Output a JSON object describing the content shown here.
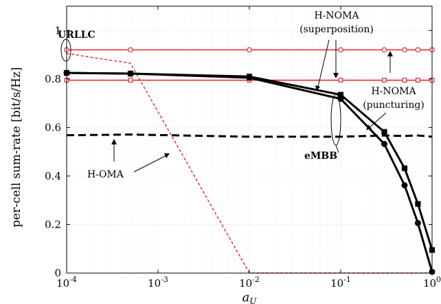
{
  "chart_data": {
    "type": "line",
    "xlabel": "a_U",
    "ylabel": "per-cell sum-rate [bit/s/Hz]",
    "xscale": "log",
    "xlim": [
      0.0001,
      1
    ],
    "ylim": [
      0,
      1.1
    ],
    "grid": true,
    "x_ticks": [
      {
        "value": 0.0001,
        "base": "10",
        "exp": "-4"
      },
      {
        "value": 0.001,
        "base": "10",
        "exp": "-3"
      },
      {
        "value": 0.01,
        "base": "10",
        "exp": "-2"
      },
      {
        "value": 0.1,
        "base": "10",
        "exp": "-1"
      },
      {
        "value": 1,
        "base": "10",
        "exp": "0"
      }
    ],
    "y_ticks": [
      {
        "value": 0,
        "label": "0"
      },
      {
        "value": 0.2,
        "label": "0.2"
      },
      {
        "value": 0.4,
        "label": "0.4"
      },
      {
        "value": 0.6,
        "label": "0.6"
      },
      {
        "value": 0.8,
        "label": "0.8"
      },
      {
        "value": 1,
        "label": "1"
      }
    ],
    "series": [
      {
        "key": "urllc_superposition",
        "color": "#e8202a",
        "width": 1.5,
        "dash": "",
        "marker": "circle-open",
        "markerSize": 3.2,
        "x": [
          0.0001,
          0.0005,
          0.01,
          0.1,
          0.3,
          0.5,
          0.7,
          1
        ],
        "y": [
          0.92,
          0.92,
          0.92,
          0.92,
          0.92,
          0.92,
          0.92,
          0.92
        ]
      },
      {
        "key": "urllc_puncturing",
        "color": "#e8202a",
        "width": 1.5,
        "dash": "",
        "marker": "square-open",
        "markerSize": 2.8,
        "x": [
          0.0001,
          0.0005,
          0.01,
          0.1,
          0.3,
          0.5,
          0.7,
          1
        ],
        "y": [
          0.795,
          0.795,
          0.795,
          0.795,
          0.795,
          0.795,
          0.795,
          0.795
        ]
      },
      {
        "key": "urllc_homa",
        "color": "#e8202a",
        "width": 1.4,
        "dash": "4,3",
        "marker": "",
        "x": [
          0.0001,
          0.0005,
          0.01,
          0.1,
          0.3,
          0.5,
          0.7,
          1
        ],
        "y": [
          0.905,
          0.865,
          0.0,
          0.0,
          0.0,
          0.0,
          0.0,
          0.0
        ]
      },
      {
        "key": "embb_homa",
        "color": "#000000",
        "width": 3,
        "dash": "11,6",
        "marker": "",
        "x": [
          0.0001,
          0.0005,
          0.01,
          0.1,
          0.3,
          0.5,
          0.7,
          1
        ],
        "y": [
          0.568,
          0.571,
          0.562,
          0.562,
          0.567,
          0.565,
          0.567,
          0.562
        ]
      },
      {
        "key": "embb_superposition",
        "color": "#000000",
        "width": 3,
        "dash": "",
        "marker": "circle",
        "markerSize": 4,
        "x": [
          0.0001,
          0.0005,
          0.01,
          0.1,
          0.3,
          0.5,
          0.7,
          1
        ],
        "y": [
          0.825,
          0.822,
          0.805,
          0.718,
          0.532,
          0.362,
          0.206,
          0.005
        ]
      },
      {
        "key": "embb_puncturing",
        "color": "#000000",
        "width": 3,
        "dash": "",
        "marker": "square",
        "markerSize": 3.6,
        "x": [
          0.0001,
          0.0005,
          0.01,
          0.1,
          0.3,
          0.5,
          0.7,
          1
        ],
        "y": [
          0.825,
          0.822,
          0.81,
          0.735,
          0.582,
          0.432,
          0.285,
          0.095
        ]
      }
    ],
    "annotations": {
      "urllc": "URLLC",
      "embb": "eMBB",
      "hnoma_sup_1": "H-NOMA",
      "hnoma_sup_2": "(superposition)",
      "hnoma_punc_1": "H-NOMA",
      "hnoma_punc_2": "(puncturing)",
      "homa": "H-OMA"
    }
  }
}
